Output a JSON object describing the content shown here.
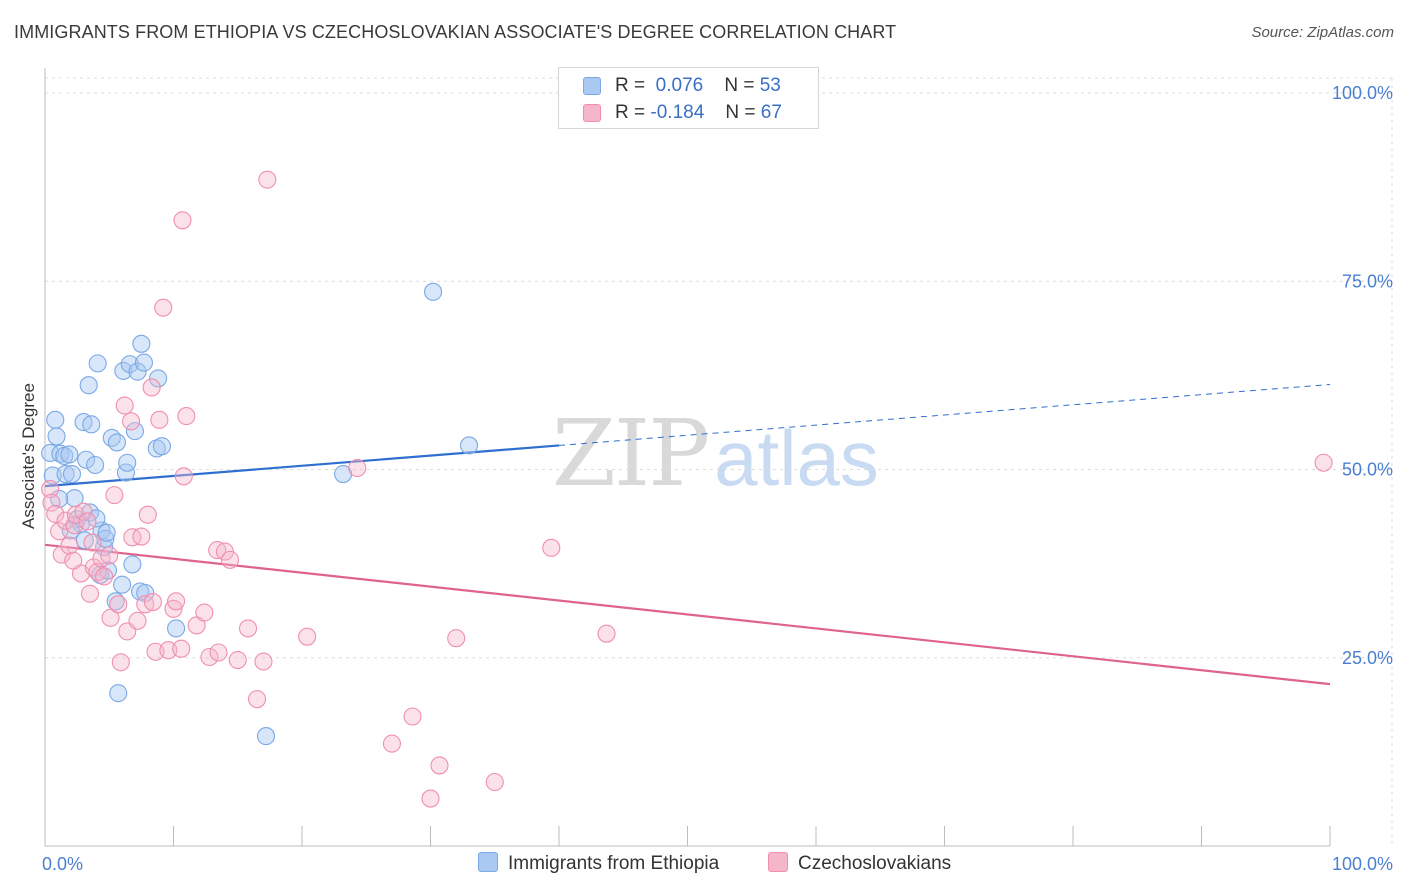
{
  "header": {
    "title": "IMMIGRANTS FROM ETHIOPIA VS CZECHOSLOVAKIAN ASSOCIATE'S DEGREE CORRELATION CHART",
    "source": "Source: ZipAtlas.com"
  },
  "watermark": {
    "zip": "ZIP",
    "atlas": "atlas"
  },
  "legend_top": {
    "rows": [
      {
        "r_label": "R =",
        "r_value": "0.076",
        "n_label": "N =",
        "n_value": "53",
        "color": "#a9c8f2"
      },
      {
        "r_label": "R =",
        "r_value": "-0.184",
        "n_label": "N =",
        "n_value": "67",
        "color": "#f6b6ca"
      }
    ]
  },
  "legend_bottom": {
    "items": [
      {
        "label": "Immigrants from Ethiopia",
        "color": "#a9c8f2"
      },
      {
        "label": "Czechoslovakians",
        "color": "#f6b6ca"
      }
    ]
  },
  "chart_data": {
    "type": "scatter",
    "title": "IMMIGRANTS FROM ETHIOPIA VS CZECHOSLOVAKIAN ASSOCIATE'S DEGREE CORRELATION CHART",
    "xlabel": "",
    "ylabel": "Associate's Degree",
    "xlim": [
      0,
      100
    ],
    "ylim": [
      0,
      102
    ],
    "x_tick_labels": [
      {
        "value": 0,
        "label": "0.0%"
      },
      {
        "value": 100,
        "label": "100.0%"
      }
    ],
    "y_tick_labels": [
      {
        "value": 25,
        "label": "25.0%"
      },
      {
        "value": 50,
        "label": "50.0%"
      },
      {
        "value": 75,
        "label": "75.0%"
      },
      {
        "value": 100,
        "label": "100.0%"
      }
    ],
    "grid": true,
    "legend_position": "top-center",
    "series": [
      {
        "name": "Immigrants from Ethiopia",
        "color": "#7aa9e6",
        "trend": {
          "x": [
            0,
            40
          ],
          "y": [
            47.8,
            53.2
          ],
          "dashed_to": [
            100,
            61.3
          ],
          "color": "#2f6fcf"
        },
        "points": [
          [
            0.4,
            52.2
          ],
          [
            0.6,
            49.2
          ],
          [
            0.8,
            56.6
          ],
          [
            0.9,
            54.4
          ],
          [
            1.2,
            52.1
          ],
          [
            1.5,
            51.8
          ],
          [
            1.6,
            49.4
          ],
          [
            1.9,
            52.0
          ],
          [
            2.1,
            49.4
          ],
          [
            2.3,
            46.2
          ],
          [
            2.5,
            43.4
          ],
          [
            2.8,
            42.8
          ],
          [
            3.0,
            56.3
          ],
          [
            3.1,
            40.6
          ],
          [
            3.2,
            51.3
          ],
          [
            3.4,
            61.2
          ],
          [
            3.5,
            44.3
          ],
          [
            3.6,
            56.0
          ],
          [
            3.9,
            50.6
          ],
          [
            4.1,
            64.1
          ],
          [
            4.3,
            36.0
          ],
          [
            4.4,
            41.9
          ],
          [
            4.6,
            39.7
          ],
          [
            4.7,
            40.8
          ],
          [
            4.8,
            41.6
          ],
          [
            4.9,
            36.6
          ],
          [
            5.2,
            54.2
          ],
          [
            5.5,
            32.5
          ],
          [
            5.6,
            53.6
          ],
          [
            5.7,
            20.3
          ],
          [
            6.0,
            34.7
          ],
          [
            6.1,
            63.1
          ],
          [
            6.3,
            49.6
          ],
          [
            6.4,
            50.9
          ],
          [
            6.6,
            64.0
          ],
          [
            6.8,
            37.4
          ],
          [
            7.0,
            55.1
          ],
          [
            7.2,
            63.0
          ],
          [
            7.4,
            33.8
          ],
          [
            7.5,
            66.7
          ],
          [
            7.7,
            64.2
          ],
          [
            7.8,
            33.6
          ],
          [
            8.7,
            52.8
          ],
          [
            8.8,
            62.1
          ],
          [
            9.1,
            53.1
          ],
          [
            10.2,
            28.9
          ],
          [
            17.2,
            14.6
          ],
          [
            23.2,
            49.4
          ],
          [
            30.2,
            73.6
          ],
          [
            33.0,
            53.2
          ],
          [
            1.1,
            46.1
          ],
          [
            2.0,
            41.9
          ],
          [
            4.0,
            43.5
          ]
        ]
      },
      {
        "name": "Czechoslovakians",
        "color": "#f08fb0",
        "trend": {
          "x": [
            0,
            100
          ],
          "y": [
            40.0,
            21.5
          ],
          "color": "#e0628e"
        },
        "points": [
          [
            0.4,
            47.4
          ],
          [
            0.5,
            45.6
          ],
          [
            0.8,
            44.1
          ],
          [
            1.1,
            41.8
          ],
          [
            1.3,
            38.7
          ],
          [
            1.6,
            43.2
          ],
          [
            1.9,
            39.9
          ],
          [
            2.3,
            42.6
          ],
          [
            2.4,
            44.0
          ],
          [
            2.8,
            36.2
          ],
          [
            3.0,
            44.4
          ],
          [
            3.3,
            43.1
          ],
          [
            3.7,
            40.3
          ],
          [
            3.8,
            37.0
          ],
          [
            4.1,
            36.4
          ],
          [
            4.4,
            38.2
          ],
          [
            4.6,
            35.8
          ],
          [
            5.1,
            30.3
          ],
          [
            5.4,
            46.6
          ],
          [
            5.7,
            32.1
          ],
          [
            5.9,
            24.4
          ],
          [
            6.2,
            58.5
          ],
          [
            6.4,
            28.5
          ],
          [
            6.7,
            56.4
          ],
          [
            6.8,
            41.0
          ],
          [
            7.2,
            29.9
          ],
          [
            7.5,
            41.1
          ],
          [
            7.8,
            32.1
          ],
          [
            8.0,
            44.0
          ],
          [
            8.3,
            60.9
          ],
          [
            8.4,
            32.4
          ],
          [
            8.6,
            25.8
          ],
          [
            8.9,
            56.6
          ],
          [
            9.2,
            71.5
          ],
          [
            9.6,
            26.0
          ],
          [
            10.0,
            31.5
          ],
          [
            10.2,
            32.5
          ],
          [
            10.6,
            26.2
          ],
          [
            10.8,
            49.1
          ],
          [
            10.7,
            83.1
          ],
          [
            11.0,
            57.1
          ],
          [
            11.8,
            29.3
          ],
          [
            12.4,
            31.0
          ],
          [
            12.8,
            25.1
          ],
          [
            13.4,
            39.3
          ],
          [
            13.5,
            25.7
          ],
          [
            14.0,
            39.1
          ],
          [
            14.4,
            38.0
          ],
          [
            15.0,
            24.7
          ],
          [
            15.8,
            28.9
          ],
          [
            16.5,
            19.5
          ],
          [
            17.0,
            24.5
          ],
          [
            17.3,
            88.5
          ],
          [
            20.4,
            27.8
          ],
          [
            24.3,
            50.2
          ],
          [
            27.0,
            13.6
          ],
          [
            28.6,
            17.2
          ],
          [
            30.0,
            6.3
          ],
          [
            30.7,
            10.7
          ],
          [
            32.0,
            27.6
          ],
          [
            35.0,
            8.5
          ],
          [
            39.4,
            39.6
          ],
          [
            43.7,
            28.2
          ],
          [
            99.5,
            50.9
          ],
          [
            2.2,
            37.9
          ],
          [
            5.0,
            38.6
          ],
          [
            3.5,
            33.5
          ]
        ]
      }
    ]
  }
}
